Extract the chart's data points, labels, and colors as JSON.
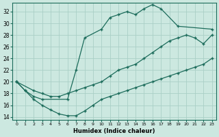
{
  "xlabel": "Humidex (Indice chaleur)",
  "ylabel": "",
  "xlim": [
    -0.5,
    23.5
  ],
  "ylim": [
    13.5,
    33.5
  ],
  "xticks": [
    0,
    1,
    2,
    3,
    4,
    5,
    6,
    7,
    8,
    9,
    10,
    11,
    12,
    13,
    14,
    15,
    16,
    17,
    18,
    19,
    20,
    21,
    22,
    23
  ],
  "yticks": [
    14,
    16,
    18,
    20,
    22,
    24,
    26,
    28,
    30,
    32
  ],
  "bg_color": "#cce8e0",
  "line_color": "#1b6b5a",
  "grid_color": "#aacfc6",
  "line1_x": [
    0,
    1,
    2,
    3,
    6,
    7,
    8,
    10,
    11,
    12,
    13,
    14,
    15,
    16,
    17,
    19,
    23
  ],
  "line1_y": [
    20,
    18.5,
    17.5,
    17,
    17,
    22,
    27.5,
    29,
    31,
    31.5,
    32,
    31.5,
    32.5,
    33.2,
    32.5,
    29.5,
    29
  ],
  "line2_x": [
    0,
    2,
    3,
    4,
    5,
    6,
    7,
    8,
    9,
    10,
    11,
    12,
    13,
    14,
    15,
    16,
    17,
    18,
    19,
    20,
    21,
    22,
    23
  ],
  "line2_y": [
    20,
    18.5,
    18,
    17.5,
    17.5,
    18,
    18.5,
    19,
    19.5,
    20,
    21,
    22,
    22.5,
    23,
    24,
    25,
    26,
    27,
    27.5,
    28,
    27.5,
    26.5,
    28
  ],
  "line3_x": [
    0,
    1,
    2,
    3,
    4,
    5,
    6,
    7,
    8,
    9,
    10,
    11,
    12,
    13,
    14,
    15,
    16,
    17,
    18,
    19,
    20,
    21,
    22,
    23
  ],
  "line3_y": [
    20,
    18.5,
    17,
    16,
    15.2,
    14.5,
    14.2,
    14.2,
    15,
    16,
    17,
    17.5,
    18,
    18.5,
    19,
    19.5,
    20,
    20.5,
    21,
    21.5,
    22,
    22.5,
    23,
    24
  ]
}
